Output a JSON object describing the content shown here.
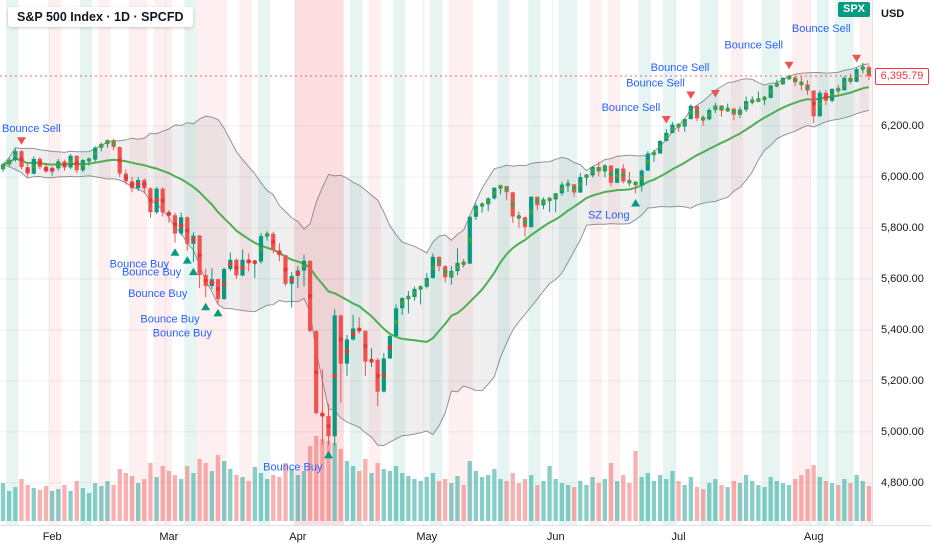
{
  "header": {
    "title": "S&P 500 Index · 1D · SPCFD"
  },
  "symbol_badge": {
    "text": "SPX",
    "color": "#089981"
  },
  "currency_label": "USD",
  "price_tag": {
    "value": "6,395.79",
    "color": "#f23645"
  },
  "price_axis": {
    "labels": [
      "6,200.00",
      "6,000.00",
      "5,800.00",
      "5,600.00",
      "5,400.00",
      "5,200.00",
      "5,000.00",
      "4,800.00"
    ],
    "values": [
      6200,
      6000,
      5800,
      5600,
      5400,
      5200,
      5000,
      4800
    ]
  },
  "time_axis": {
    "months": [
      {
        "label": "Feb",
        "index": 8
      },
      {
        "label": "Mar",
        "index": 27
      },
      {
        "label": "Apr",
        "index": 48
      },
      {
        "label": "May",
        "index": 69
      },
      {
        "label": "Jun",
        "index": 90
      },
      {
        "label": "Jul",
        "index": 110
      },
      {
        "label": "Aug",
        "index": 132
      }
    ]
  },
  "colors": {
    "up": "#089981",
    "down": "#ef5350",
    "dot_up": "#43a047",
    "dot_down": "#e53935",
    "ma_line": "#4caf50",
    "band_fill": "rgba(130,132,140,0.13)",
    "band_edge": "#787b86",
    "vol_up": "rgba(38,166,154,0.55)",
    "vol_down": "rgba(239,83,80,0.45)",
    "stripe_green": "rgba(8,153,129,0.10)",
    "stripe_red": "rgba(242,54,69,0.08)",
    "stripe_red_strong": "rgba(242,54,69,0.16)",
    "grid": "rgba(42,46,57,0.07)",
    "annotation": "#2962ff",
    "last_price": "#f23645"
  },
  "chart_data": {
    "type": "candlestick",
    "title": "S&P 500 Index",
    "interval": "1D",
    "exchange": "SPCFD",
    "currency": "USD",
    "last_price": 6395.79,
    "ylim": [
      4635,
      6694
    ],
    "x_range_months": [
      "Feb",
      "Mar",
      "Apr",
      "May",
      "Jun",
      "Jul",
      "Aug"
    ],
    "overlays": {
      "bollinger_period": 20,
      "bollinger_mult": 2,
      "ma_period": 20,
      "volume": true,
      "signal_dots": true
    },
    "ohlc": [
      [
        6030,
        6055,
        6020,
        6049
      ],
      [
        6049,
        6075,
        6040,
        6067
      ],
      [
        6067,
        6110,
        6060,
        6101
      ],
      [
        6101,
        6105,
        6030,
        6039
      ],
      [
        6039,
        6050,
        6000,
        6013
      ],
      [
        6013,
        6080,
        6010,
        6071
      ],
      [
        6071,
        6078,
        6030,
        6040
      ],
      [
        6040,
        6055,
        6015,
        6022
      ],
      [
        6022,
        6040,
        6005,
        6034
      ],
      [
        6034,
        6070,
        6025,
        6061
      ],
      [
        6061,
        6068,
        6025,
        6037
      ],
      [
        6037,
        6090,
        6030,
        6083
      ],
      [
        6083,
        6085,
        6015,
        6026
      ],
      [
        6026,
        6070,
        6020,
        6066
      ],
      [
        6066,
        6075,
        6045,
        6068
      ],
      [
        6068,
        6120,
        6060,
        6115
      ],
      [
        6115,
        6135,
        6100,
        6129
      ],
      [
        6129,
        6147,
        6115,
        6144
      ],
      [
        6144,
        6150,
        6105,
        6117
      ],
      [
        6117,
        6120,
        6000,
        6013
      ],
      [
        6013,
        6030,
        5970,
        5983
      ],
      [
        5983,
        6000,
        5940,
        5956
      ],
      [
        5956,
        6000,
        5945,
        5988
      ],
      [
        5988,
        5995,
        5935,
        5955
      ],
      [
        5955,
        5960,
        5840,
        5862
      ],
      [
        5862,
        5960,
        5855,
        5954
      ],
      [
        5954,
        5960,
        5845,
        5861
      ],
      [
        5861,
        5870,
        5820,
        5850
      ],
      [
        5850,
        5860,
        5742,
        5778
      ],
      [
        5778,
        5860,
        5770,
        5842
      ],
      [
        5842,
        5845,
        5711,
        5738
      ],
      [
        5738,
        5783,
        5666,
        5770
      ],
      [
        5770,
        5772,
        5564,
        5615
      ],
      [
        5615,
        5640,
        5528,
        5572
      ],
      [
        5572,
        5642,
        5560,
        5599
      ],
      [
        5599,
        5600,
        5504,
        5521
      ],
      [
        5521,
        5645,
        5519,
        5639
      ],
      [
        5639,
        5704,
        5630,
        5675
      ],
      [
        5675,
        5680,
        5600,
        5614
      ],
      [
        5614,
        5715,
        5610,
        5675
      ],
      [
        5675,
        5700,
        5630,
        5663
      ],
      [
        5663,
        5670,
        5603,
        5668
      ],
      [
        5668,
        5780,
        5660,
        5768
      ],
      [
        5768,
        5787,
        5750,
        5777
      ],
      [
        5777,
        5785,
        5700,
        5712
      ],
      [
        5712,
        5740,
        5670,
        5693
      ],
      [
        5693,
        5695,
        5572,
        5581
      ],
      [
        5581,
        5627,
        5488,
        5612
      ],
      [
        5612,
        5650,
        5565,
        5633
      ],
      [
        5633,
        5695,
        5571,
        5671
      ],
      [
        5671,
        5672,
        5390,
        5396
      ],
      [
        5396,
        5400,
        5069,
        5074
      ],
      [
        5074,
        5246,
        4950,
        5062
      ],
      [
        5062,
        5110,
        4947,
        4983
      ],
      [
        4983,
        5481,
        4948,
        5457
      ],
      [
        5457,
        5460,
        5115,
        5268
      ],
      [
        5268,
        5380,
        5220,
        5363
      ],
      [
        5363,
        5459,
        5358,
        5406
      ],
      [
        5406,
        5450,
        5386,
        5397
      ],
      [
        5397,
        5398,
        5220,
        5276
      ],
      [
        5276,
        5328,
        5255,
        5283
      ],
      [
        5283,
        5290,
        5101,
        5158
      ],
      [
        5158,
        5309,
        5155,
        5288
      ],
      [
        5288,
        5380,
        5287,
        5376
      ],
      [
        5376,
        5500,
        5375,
        5485
      ],
      [
        5485,
        5528,
        5459,
        5525
      ],
      [
        5525,
        5553,
        5465,
        5529
      ],
      [
        5529,
        5570,
        5515,
        5561
      ],
      [
        5561,
        5575,
        5500,
        5569
      ],
      [
        5569,
        5623,
        5562,
        5604
      ],
      [
        5604,
        5700,
        5602,
        5687
      ],
      [
        5687,
        5688,
        5630,
        5650
      ],
      [
        5650,
        5654,
        5586,
        5606
      ],
      [
        5606,
        5650,
        5578,
        5631
      ],
      [
        5631,
        5720,
        5615,
        5663
      ],
      [
        5663,
        5678,
        5645,
        5660
      ],
      [
        5660,
        5845,
        5658,
        5844
      ],
      [
        5844,
        5897,
        5831,
        5887
      ],
      [
        5887,
        5901,
        5860,
        5893
      ],
      [
        5893,
        5920,
        5866,
        5916
      ],
      [
        5916,
        5959,
        5911,
        5958
      ],
      [
        5958,
        5968,
        5932,
        5964
      ],
      [
        5964,
        5965,
        5909,
        5940
      ],
      [
        5940,
        5942,
        5820,
        5845
      ],
      [
        5845,
        5864,
        5801,
        5842
      ],
      [
        5842,
        5845,
        5767,
        5803
      ],
      [
        5803,
        5925,
        5802,
        5922
      ],
      [
        5922,
        5923,
        5870,
        5889
      ],
      [
        5889,
        5920,
        5874,
        5912
      ],
      [
        5912,
        5917,
        5863,
        5912
      ],
      [
        5912,
        5937,
        5861,
        5936
      ],
      [
        5936,
        5981,
        5926,
        5970
      ],
      [
        5970,
        5990,
        5941,
        5971
      ],
      [
        5971,
        5972,
        5922,
        5939
      ],
      [
        5939,
        6016,
        5938,
        6000
      ],
      [
        6000,
        6007,
        5966,
        6006
      ],
      [
        6006,
        6043,
        5998,
        6039
      ],
      [
        6039,
        6059,
        6002,
        6022
      ],
      [
        6022,
        6051,
        5998,
        6045
      ],
      [
        6045,
        6046,
        5963,
        5977
      ],
      [
        5977,
        6034,
        5976,
        6033
      ],
      [
        6033,
        6050,
        5975,
        5982
      ],
      [
        5982,
        6020,
        5963,
        5981
      ],
      [
        5981,
        5982,
        5935,
        5968
      ],
      [
        5968,
        6030,
        5943,
        6025
      ],
      [
        6025,
        6101,
        6024,
        6092
      ],
      [
        6092,
        6107,
        6059,
        6092
      ],
      [
        6092,
        6146,
        6091,
        6141
      ],
      [
        6141,
        6188,
        6140,
        6173
      ],
      [
        6173,
        6215,
        6172,
        6205
      ],
      [
        6205,
        6210,
        6177,
        6198
      ],
      [
        6198,
        6228,
        6177,
        6227
      ],
      [
        6227,
        6284,
        6226,
        6279
      ],
      [
        6279,
        6280,
        6218,
        6230
      ],
      [
        6230,
        6242,
        6201,
        6226
      ],
      [
        6226,
        6269,
        6222,
        6263
      ],
      [
        6263,
        6290,
        6251,
        6280
      ],
      [
        6280,
        6282,
        6237,
        6260
      ],
      [
        6260,
        6288,
        6255,
        6268
      ],
      [
        6268,
        6270,
        6222,
        6244
      ],
      [
        6244,
        6276,
        6231,
        6264
      ],
      [
        6264,
        6315,
        6255,
        6297
      ],
      [
        6297,
        6316,
        6284,
        6297
      ],
      [
        6297,
        6336,
        6296,
        6306
      ],
      [
        6306,
        6318,
        6282,
        6310
      ],
      [
        6310,
        6360,
        6309,
        6359
      ],
      [
        6359,
        6381,
        6352,
        6363
      ],
      [
        6363,
        6391,
        6362,
        6389
      ],
      [
        6389,
        6401,
        6383,
        6390
      ],
      [
        6390,
        6396,
        6356,
        6371
      ],
      [
        6371,
        6396,
        6340,
        6363
      ],
      [
        6363,
        6379,
        6322,
        6339
      ],
      [
        6339,
        6340,
        6212,
        6238
      ],
      [
        6238,
        6339,
        6237,
        6330
      ],
      [
        6330,
        6341,
        6282,
        6299
      ],
      [
        6299,
        6348,
        6292,
        6345
      ],
      [
        6345,
        6362,
        6320,
        6340
      ],
      [
        6340,
        6395,
        6339,
        6389
      ],
      [
        6389,
        6405,
        6365,
        6373
      ],
      [
        6373,
        6428,
        6372,
        6423
      ],
      [
        6423,
        6448,
        6406,
        6431
      ],
      [
        6431,
        6438,
        6380,
        6396
      ]
    ],
    "volume": [
      38,
      30,
      34,
      42,
      36,
      33,
      31,
      35,
      30,
      32,
      36,
      30,
      40,
      33,
      28,
      38,
      35,
      40,
      36,
      52,
      48,
      45,
      38,
      42,
      58,
      44,
      55,
      50,
      46,
      42,
      55,
      48,
      62,
      58,
      50,
      66,
      60,
      52,
      46,
      44,
      40,
      54,
      48,
      42,
      46,
      44,
      58,
      52,
      46,
      50,
      75,
      85,
      82,
      80,
      78,
      72,
      60,
      55,
      50,
      62,
      48,
      58,
      52,
      50,
      55,
      48,
      45,
      42,
      40,
      44,
      48,
      40,
      42,
      38,
      45,
      36,
      60,
      50,
      44,
      46,
      52,
      42,
      40,
      48,
      38,
      42,
      46,
      36,
      40,
      55,
      42,
      38,
      36,
      34,
      40,
      36,
      44,
      38,
      42,
      58,
      40,
      46,
      38,
      70,
      44,
      48,
      40,
      46,
      42,
      50,
      40,
      36,
      44,
      34,
      32,
      38,
      42,
      36,
      34,
      40,
      38,
      46,
      40,
      36,
      34,
      44,
      40,
      38,
      36,
      42,
      46,
      52,
      56,
      44,
      40,
      38,
      36,
      42,
      38,
      46,
      40,
      35
    ],
    "annotations": [
      {
        "i": 3,
        "side": "sell",
        "label": "Bounce Sell",
        "dy": 0
      },
      {
        "i": 28,
        "side": "buy",
        "label": "Bounce Buy",
        "dy": 0
      },
      {
        "i": 30,
        "side": "buy",
        "label": "Bounce Buy",
        "dy": 0
      },
      {
        "i": 31,
        "side": "buy",
        "label": "Bounce Buy",
        "dy": 10
      },
      {
        "i": 33,
        "side": "buy",
        "label": "Bounce Buy",
        "dy": 0
      },
      {
        "i": 35,
        "side": "buy",
        "label": "Bounce Buy",
        "dy": 8
      },
      {
        "i": 53,
        "side": "buy",
        "label": "Bounce Buy",
        "dy": 0
      },
      {
        "i": 103,
        "side": "buy",
        "label": "SZ Long",
        "dy": 0
      },
      {
        "i": 108,
        "side": "sell",
        "label": "Bounce Sell",
        "dy": 0
      },
      {
        "i": 112,
        "side": "sell",
        "label": "Bounce Sell",
        "dy": 0
      },
      {
        "i": 116,
        "side": "sell",
        "label": "Bounce Sell",
        "dy": -14
      },
      {
        "i": 128,
        "side": "sell",
        "label": "Bounce Sell",
        "dy": -8
      },
      {
        "i": 139,
        "side": "sell",
        "label": "Bounce Sell",
        "dy": -18
      }
    ],
    "background_stripes": [
      {
        "s": 1,
        "e": 2,
        "c": "g"
      },
      {
        "s": 8,
        "e": 9,
        "c": "r"
      },
      {
        "s": 13,
        "e": 14,
        "c": "g"
      },
      {
        "s": 16,
        "e": 17,
        "c": "r"
      },
      {
        "s": 21,
        "e": 23,
        "c": "r"
      },
      {
        "s": 25,
        "e": 27,
        "c": "r"
      },
      {
        "s": 30,
        "e": 31,
        "c": "g"
      },
      {
        "s": 32,
        "e": 36,
        "c": "r"
      },
      {
        "s": 39,
        "e": 40,
        "c": "r"
      },
      {
        "s": 42,
        "e": 43,
        "c": "g"
      },
      {
        "s": 48,
        "e": 55,
        "c": "R"
      },
      {
        "s": 57,
        "e": 58,
        "c": "g"
      },
      {
        "s": 60,
        "e": 61,
        "c": "r"
      },
      {
        "s": 64,
        "e": 65,
        "c": "g"
      },
      {
        "s": 70,
        "e": 71,
        "c": "g"
      },
      {
        "s": 73,
        "e": 76,
        "c": "r"
      },
      {
        "s": 81,
        "e": 82,
        "c": "g"
      },
      {
        "s": 86,
        "e": 87,
        "c": "g"
      },
      {
        "s": 91,
        "e": 93,
        "c": "g"
      },
      {
        "s": 96,
        "e": 97,
        "c": "r"
      },
      {
        "s": 99,
        "e": 100,
        "c": "r"
      },
      {
        "s": 104,
        "e": 105,
        "c": "g"
      },
      {
        "s": 108,
        "e": 109,
        "c": "g"
      },
      {
        "s": 114,
        "e": 116,
        "c": "g"
      },
      {
        "s": 119,
        "e": 120,
        "c": "r"
      },
      {
        "s": 124,
        "e": 126,
        "c": "g"
      },
      {
        "s": 129,
        "e": 131,
        "c": "r"
      },
      {
        "s": 133,
        "e": 134,
        "c": "g"
      },
      {
        "s": 136,
        "e": 138,
        "c": "g"
      },
      {
        "s": 140,
        "e": 141,
        "c": "r"
      }
    ]
  }
}
